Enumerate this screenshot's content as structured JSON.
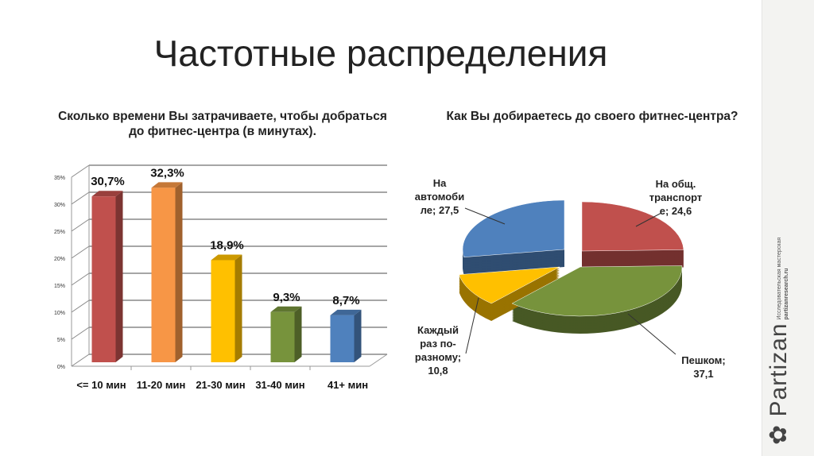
{
  "title": "Частотные распределения",
  "logo": {
    "name": "Partizan",
    "tagline": "Исследовательская мастерская",
    "url": "partizanresearch.ru"
  },
  "chart_data": [
    {
      "type": "bar",
      "title": "Сколько времени Вы затрачиваете,  чтобы добраться до фитнес-центра (в минутах).",
      "categories": [
        "<= 10 мин",
        "11-20 мин",
        "21-30 мин",
        "31-40 мин",
        "41+ мин"
      ],
      "values": [
        30.7,
        32.3,
        18.9,
        9.3,
        8.7
      ],
      "data_labels": [
        "30,7%",
        "32,3%",
        "18,9%",
        "9,3%",
        "8,7%"
      ],
      "colors": [
        "#c0504d",
        "#f79646",
        "#ffc000",
        "#77933c",
        "#4f81bd"
      ],
      "yticks": [
        "0%",
        "5%",
        "10%",
        "15%",
        "20%",
        "25%",
        "30%",
        "35%"
      ],
      "ylim": [
        0,
        35
      ],
      "grid": true,
      "3d": true
    },
    {
      "type": "pie",
      "title": "Как Вы добираетесь до своего фитнес-центра?",
      "slices": [
        {
          "label": "На общ. транспорт е; 24,6",
          "lines": [
            "На общ.",
            "транспорт",
            "е; 24,6"
          ],
          "value": 24.6,
          "color": "#c0504d"
        },
        {
          "label": "Пешком; 37,1",
          "lines": [
            "Пешком;",
            "37,1"
          ],
          "value": 37.1,
          "color": "#77933c"
        },
        {
          "label": "Каждый раз по-разному; 10,8",
          "lines": [
            "Каждый",
            "раз по-",
            "разному;",
            "10,8"
          ],
          "value": 10.8,
          "color": "#ffc000"
        },
        {
          "label": "На автомобиле; 27,5",
          "lines": [
            "На",
            "автомоби",
            "ле; 27,5"
          ],
          "value": 27.5,
          "color": "#4f81bd"
        }
      ],
      "3d": true
    }
  ]
}
